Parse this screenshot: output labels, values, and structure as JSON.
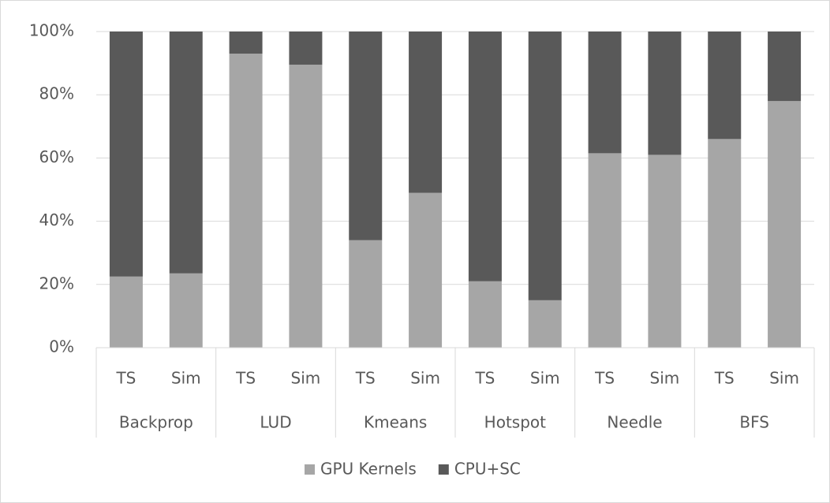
{
  "chart_data": {
    "type": "stacked_bar",
    "categories": [
      "TS",
      "Sim",
      "TS",
      "Sim",
      "TS",
      "Sim",
      "TS",
      "Sim",
      "TS",
      "Sim",
      "TS",
      "Sim"
    ],
    "groups": [
      "Backprop",
      "LUD",
      "Kmeans",
      "Hotspot",
      "Needle",
      "BFS"
    ],
    "series": [
      {
        "name": "GPU Kernels",
        "color": "#a6a6a6",
        "values": [
          22.5,
          23.5,
          93,
          89.5,
          34,
          49,
          21,
          15,
          61.5,
          61,
          66,
          78
        ]
      },
      {
        "name": "CPU+SC",
        "color": "#595959",
        "values": [
          77.5,
          76.5,
          7,
          10.5,
          66,
          51,
          79,
          85,
          38.5,
          39,
          34,
          22
        ]
      }
    ],
    "ylim": [
      0,
      100
    ],
    "yticks": [
      {
        "value": 0,
        "label": "0%"
      },
      {
        "value": 20,
        "label": "20%"
      },
      {
        "value": 40,
        "label": "40%"
      },
      {
        "value": 60,
        "label": "60%"
      },
      {
        "value": 80,
        "label": "80%"
      },
      {
        "value": 100,
        "label": "100%"
      }
    ],
    "grid": true,
    "legend": "bottom"
  }
}
